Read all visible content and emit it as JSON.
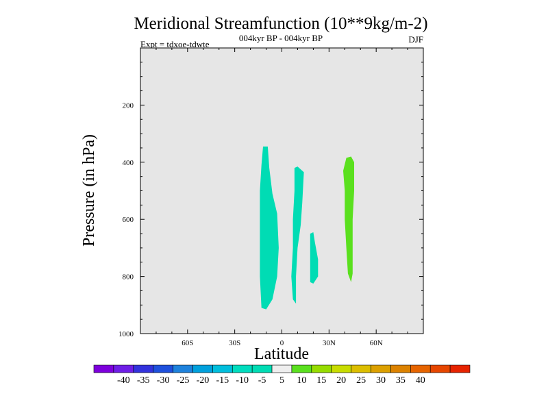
{
  "chart_data": {
    "type": "contour",
    "title": "Meridional Streamfunction (10**9kg/m-2)",
    "subtitle": "004kyr BP - 004kyr BP",
    "left_note": "Expt = tdxoe-tdwte",
    "right_note": "DJF",
    "xlabel": "Latitude",
    "ylabel": "Pressure (in hPa)",
    "xlim": [
      -90,
      90
    ],
    "ylim": [
      1000,
      0
    ],
    "x_ticks": [
      {
        "value": -60,
        "label": "60S"
      },
      {
        "value": -30,
        "label": "30S"
      },
      {
        "value": 0,
        "label": "0"
      },
      {
        "value": 30,
        "label": "30N"
      },
      {
        "value": 60,
        "label": "60N"
      }
    ],
    "y_ticks": [
      {
        "value": 200,
        "label": "200"
      },
      {
        "value": 400,
        "label": "400"
      },
      {
        "value": 600,
        "label": "600"
      },
      {
        "value": 800,
        "label": "800"
      },
      {
        "value": 1000,
        "label": "1000"
      }
    ],
    "background_fill": "#e6e6e6",
    "regions": [
      {
        "name": "negative-cell-1",
        "level": "-10 to -5",
        "color": "#00dcb4",
        "outline": [
          [
            -12,
            345
          ],
          [
            -9,
            345
          ],
          [
            -8,
            420
          ],
          [
            -6,
            510
          ],
          [
            -3,
            580
          ],
          [
            -2,
            700
          ],
          [
            -3,
            800
          ],
          [
            -6,
            880
          ],
          [
            -10,
            915
          ],
          [
            -13,
            910
          ],
          [
            -14,
            800
          ],
          [
            -14,
            650
          ],
          [
            -14,
            500
          ],
          [
            -13,
            410
          ]
        ]
      },
      {
        "name": "negative-cell-2",
        "level": "-10 to -5",
        "color": "#00dcb4",
        "outline": [
          [
            8,
            420
          ],
          [
            10,
            415
          ],
          [
            14,
            435
          ],
          [
            13,
            540
          ],
          [
            12,
            620
          ],
          [
            10,
            700
          ],
          [
            9,
            800
          ],
          [
            9,
            895
          ],
          [
            7,
            880
          ],
          [
            6,
            800
          ],
          [
            7,
            700
          ],
          [
            7,
            600
          ],
          [
            8,
            500
          ]
        ]
      },
      {
        "name": "negative-cell-3",
        "level": "-10 to -5",
        "color": "#00dcb4",
        "outline": [
          [
            18,
            650
          ],
          [
            20,
            645
          ],
          [
            21,
            680
          ],
          [
            23,
            740
          ],
          [
            23,
            800
          ],
          [
            20,
            825
          ],
          [
            18,
            820
          ],
          [
            18,
            750
          ]
        ]
      },
      {
        "name": "positive-cell-1",
        "level": "5 to 10",
        "color": "#5ae01e",
        "outline": [
          [
            41,
            385
          ],
          [
            44,
            380
          ],
          [
            46,
            400
          ],
          [
            46,
            500
          ],
          [
            45,
            600
          ],
          [
            45,
            700
          ],
          [
            45,
            790
          ],
          [
            44,
            820
          ],
          [
            42,
            790
          ],
          [
            41,
            700
          ],
          [
            40,
            600
          ],
          [
            40,
            500
          ],
          [
            39,
            430
          ]
        ]
      }
    ],
    "colorbar": {
      "colors": [
        "#7d00dc",
        "#6e1ee6",
        "#3232dc",
        "#1e50dc",
        "#1e82dc",
        "#00a0dc",
        "#00bedc",
        "#00dcbe",
        "#00dcb4",
        "#eeeeee",
        "#5ae01e",
        "#96dc00",
        "#c8dc00",
        "#dcbe00",
        "#dca000",
        "#dc8200",
        "#e66400",
        "#e64600",
        "#e62300"
      ],
      "labels": [
        "-40",
        "-35",
        "-30",
        "-25",
        "-20",
        "-15",
        "-10",
        "-5",
        "5",
        "10",
        "15",
        "20",
        "25",
        "30",
        "35",
        "40"
      ]
    }
  }
}
